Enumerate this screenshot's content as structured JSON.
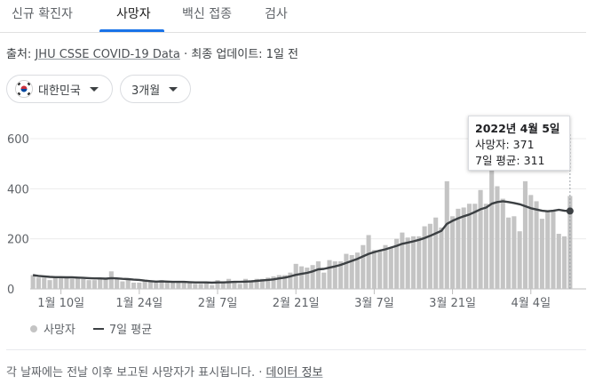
{
  "tabs": [
    {
      "label": "신규 확진자",
      "active": false
    },
    {
      "label": "사망자",
      "active": true
    },
    {
      "label": "백신 접종",
      "active": false
    },
    {
      "label": "검사",
      "active": false
    }
  ],
  "source": {
    "prefix": "출처:",
    "link": "JHU CSSE COVID-19 Data",
    "suffix": " · 최종 업데이트: 1일 전"
  },
  "filters": {
    "country": "대한민국",
    "period": "3개월"
  },
  "tooltip": {
    "date": "2022년 4월 5일",
    "deaths": "사망자: 371",
    "avg": "7일 평균: 311"
  },
  "legend": {
    "bars": "사망자",
    "line": "7일 평균"
  },
  "footer": {
    "text": "각 날짜에는 전날 이후 보고된 사망자가 표시됩니다. · ",
    "link": "데이터 정보"
  },
  "colors": {
    "bar": "#c4c4c4",
    "avg_line": "#3c4043",
    "tab_accent": "#1a73e8"
  },
  "chart_data": {
    "type": "bar",
    "title": "",
    "ylim": [
      0,
      600
    ],
    "y_ticks": [
      0,
      200,
      400,
      600
    ],
    "x_tick_labels": [
      {
        "label": "1월 10일",
        "day_index": 5
      },
      {
        "label": "1월 24일",
        "day_index": 19
      },
      {
        "label": "2월 7일",
        "day_index": 33
      },
      {
        "label": "2월 21일",
        "day_index": 47
      },
      {
        "label": "3월 7일",
        "day_index": 61
      },
      {
        "label": "3월 21일",
        "day_index": 75
      },
      {
        "label": "4월 4일",
        "day_index": 89
      }
    ],
    "series": [
      {
        "name": "사망자",
        "type": "bar",
        "values": [
          55,
          45,
          45,
          35,
          50,
          45,
          45,
          40,
          45,
          40,
          35,
          35,
          40,
          40,
          70,
          40,
          30,
          35,
          25,
          25,
          35,
          30,
          25,
          35,
          30,
          30,
          30,
          25,
          25,
          20,
          20,
          25,
          15,
          35,
          30,
          40,
          25,
          20,
          40,
          35,
          40,
          40,
          45,
          50,
          55,
          55,
          65,
          100,
          90,
          85,
          95,
          110,
          65,
          115,
          110,
          110,
          140,
          135,
          145,
          175,
          215,
          155,
          150,
          175,
          165,
          200,
          225,
          205,
          210,
          210,
          250,
          260,
          285,
          245,
          430,
          290,
          320,
          325,
          340,
          340,
          395,
          340,
          480,
          410,
          360,
          285,
          290,
          230,
          430,
          375,
          350,
          280,
          310,
          310,
          220,
          210,
          371
        ],
        "last_date": "2022년 4월 5일"
      },
      {
        "name": "7일 평균",
        "type": "line",
        "values": [
          55,
          52,
          50,
          48,
          47,
          47,
          46,
          46,
          45,
          44,
          43,
          42,
          42,
          41,
          43,
          42,
          40,
          39,
          37,
          36,
          33,
          31,
          29,
          30,
          29,
          28,
          28,
          28,
          27,
          26,
          26,
          26,
          25,
          26,
          26,
          27,
          28,
          28,
          29,
          30,
          32,
          34,
          36,
          38,
          42,
          45,
          50,
          56,
          60,
          64,
          70,
          78,
          80,
          85,
          90,
          96,
          104,
          112,
          120,
          130,
          140,
          147,
          153,
          158,
          165,
          172,
          180,
          185,
          190,
          196,
          203,
          212,
          222,
          232,
          260,
          272,
          282,
          290,
          297,
          307,
          318,
          325,
          340,
          347,
          350,
          347,
          343,
          338,
          330,
          322,
          317,
          312,
          310,
          312,
          316,
          312,
          311
        ]
      }
    ]
  }
}
